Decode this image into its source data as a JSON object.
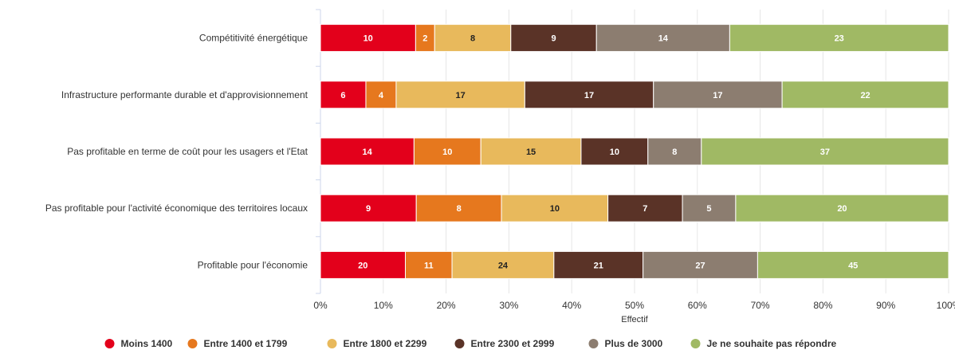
{
  "chart_data": {
    "type": "bar",
    "orientation": "horizontal",
    "stacking": "percent",
    "categories": [
      "Compétitivité énergétique",
      "Infrastructure performante durable et d'approvisionnement",
      "Pas profitable en terme de coût pour les usagers et l'Etat",
      "Pas profitable pour l'activité économique des territoires locaux",
      "Profitable pour l'économie"
    ],
    "series": [
      {
        "name": "Moins 1400",
        "color": "#e3001b",
        "values": [
          10,
          6,
          14,
          9,
          20
        ]
      },
      {
        "name": "Entre 1400 et 1799",
        "color": "#e6781e",
        "values": [
          2,
          4,
          10,
          8,
          11
        ]
      },
      {
        "name": "Entre 1800 et 2299",
        "color": "#e8b95c",
        "values": [
          8,
          17,
          15,
          10,
          24
        ]
      },
      {
        "name": "Entre 2300 et 2999",
        "color": "#5a3327",
        "values": [
          9,
          17,
          10,
          7,
          21
        ]
      },
      {
        "name": "Plus de 3000",
        "color": "#8c7d70",
        "values": [
          14,
          17,
          8,
          5,
          27
        ]
      },
      {
        "name": "Je ne souhaite pas répondre",
        "color": "#a0b964",
        "values": [
          23,
          22,
          37,
          20,
          45
        ]
      }
    ],
    "xlabel": "Effectif",
    "x_ticks": [
      "0%",
      "10%",
      "20%",
      "30%",
      "40%",
      "50%",
      "60%",
      "70%",
      "80%",
      "90%",
      "100%"
    ],
    "xlim": [
      0,
      100
    ],
    "legend_position": "bottom",
    "grid": true
  }
}
